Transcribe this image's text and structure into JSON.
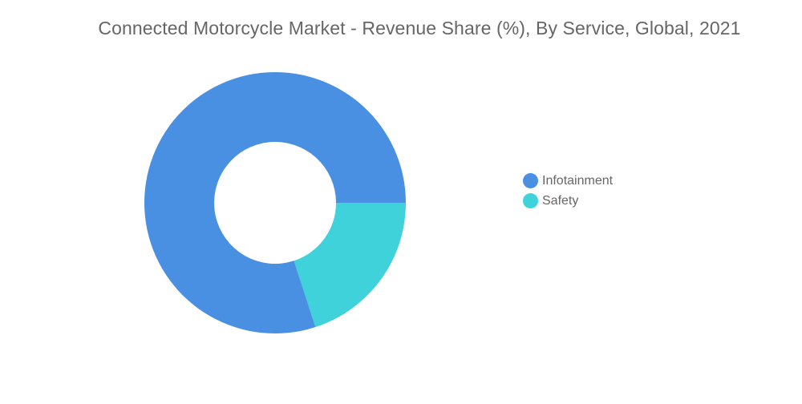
{
  "chart_data": {
    "type": "pie",
    "variant": "donut",
    "title": "Connected Motorcycle Market - Revenue Share (%), By Service, Global, 2021",
    "categories": [
      "Infotainment",
      "Safety"
    ],
    "values": [
      80,
      20
    ],
    "colors": [
      "#4A90E2",
      "#3FD2DA"
    ],
    "legend_position": "right"
  }
}
